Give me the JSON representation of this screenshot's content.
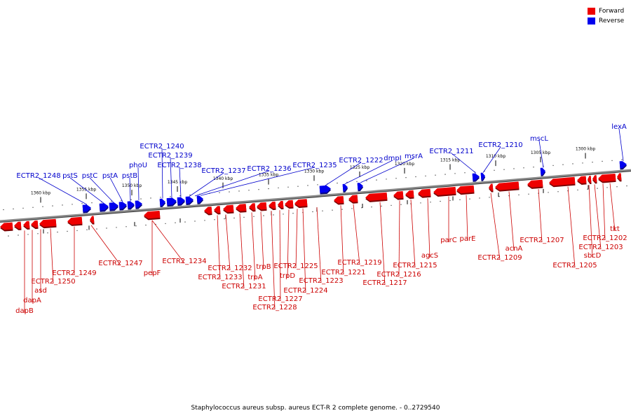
{
  "legend": {
    "items": [
      {
        "label": "Forward",
        "color": "#ee0000"
      },
      {
        "label": "Reverse",
        "color": "#0000ee"
      }
    ]
  },
  "caption": "Staphylococcus aureus subsp. aureus ECT-R 2 complete genome. - 0..2729540",
  "ticks": [
    "1360 kbp",
    "1355 kbp",
    "1350 kbp",
    "1345 kbp",
    "1340 kbp",
    "1335 kbp",
    "1330 kbp",
    "1325 kbp",
    "1320 kbp",
    "1315 kbp",
    "1310 kbp",
    "1305 kbp",
    "1300 kbp"
  ],
  "reverse_labels": [
    "ECTR2_1248",
    "pstS",
    "pstC",
    "pstA",
    "pstB",
    "phoU",
    "ECTR2_1240",
    "ECTR2_1239",
    "ECTR2_1238",
    "ECTR2_1237",
    "ECTR2_1236",
    "ECTR2_1235",
    "ECTR2_1222",
    "dmpI",
    "msrA",
    "ECTR2_1211",
    "ECTR2_1210",
    "mscL",
    "lexA"
  ],
  "forward_labels": [
    "dapB",
    "dapA",
    "asd",
    "ECTR2_1250",
    "ECTR2_1249",
    "ECTR2_1247",
    "pepF",
    "ECTR2_1234",
    "ECTR2_1233",
    "ECTR2_1232",
    "ECTR2_1231",
    "trpA",
    "trpB",
    "ECTR2_1228",
    "ECTR2_1227",
    "trpD",
    "ECTR2_1225",
    "ECTR2_1224",
    "ECTR2_1223",
    "ECTR2_1221",
    "ECTR2_1219",
    "ECTR2_1217",
    "ECTR2_1216",
    "ECTR2_1215",
    "agcS",
    "parC",
    "parE",
    "ECTR2_1209",
    "acnA",
    "ECTR2_1207",
    "ECTR2_1205",
    "sbcD",
    "ECTR2_1203",
    "ECTR2_1202",
    "tkt"
  ]
}
